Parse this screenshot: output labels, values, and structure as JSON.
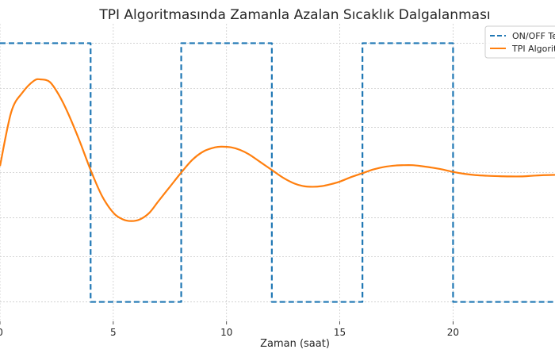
{
  "chart_data": {
    "type": "line",
    "title": "TPI Algoritmasında Zamanla Azalan Sıcaklık Dalgalanması",
    "xlabel": "Zaman (saat)",
    "ylabel": "",
    "xlim": [
      0,
      24.5
    ],
    "ylim": [
      -1.15,
      1.15
    ],
    "x_ticks": [
      0,
      5,
      10,
      15,
      20
    ],
    "x_tick_labels": [
      "0",
      "5",
      "10",
      "15",
      "20"
    ],
    "y_ticks": [
      -1.0,
      -0.65,
      -0.35,
      0.0,
      0.35,
      0.65,
      1.0
    ],
    "grid": true,
    "legend_position": "top-right",
    "legend_entries": [
      "ON/OFF Te",
      "TPI Algorit"
    ],
    "series": [
      {
        "name": "ON/OFF Te",
        "style": "dashed",
        "color": "#1f77b4",
        "x": [
          0,
          4,
          4,
          8,
          8,
          12,
          12,
          16,
          16,
          20,
          20,
          24.5
        ],
        "y": [
          1,
          1,
          -1,
          -1,
          1,
          1,
          -1,
          -1,
          1,
          1,
          -1,
          -1
        ]
      },
      {
        "name": "TPI Algorit",
        "style": "solid",
        "color": "#ff7f0e",
        "x": [
          0,
          0.5,
          1,
          1.5,
          1.8,
          2.2,
          2.6,
          3,
          3.5,
          4,
          4.5,
          5,
          5.4,
          5.8,
          6.2,
          6.6,
          7,
          7.5,
          8,
          8.5,
          9,
          9.5,
          9.8,
          10.2,
          10.6,
          11,
          11.5,
          12,
          12.5,
          13,
          13.4,
          13.8,
          14.2,
          14.6,
          15,
          15.5,
          16,
          16.5,
          17,
          17.5,
          17.8,
          18.2,
          18.6,
          19,
          19.5,
          20,
          20.5,
          21,
          21.5,
          22,
          22.5,
          23,
          23.5,
          24,
          24.5
        ],
        "y": [
          0.05,
          0.47,
          0.62,
          0.71,
          0.72,
          0.7,
          0.6,
          0.46,
          0.25,
          0.02,
          -0.18,
          -0.31,
          -0.36,
          -0.375,
          -0.36,
          -0.31,
          -0.22,
          -0.11,
          0.0,
          0.1,
          0.165,
          0.195,
          0.2,
          0.195,
          0.175,
          0.14,
          0.08,
          0.02,
          -0.04,
          -0.085,
          -0.105,
          -0.11,
          -0.105,
          -0.09,
          -0.07,
          -0.035,
          -0.005,
          0.025,
          0.045,
          0.055,
          0.057,
          0.057,
          0.05,
          0.04,
          0.025,
          0.005,
          -0.01,
          -0.02,
          -0.025,
          -0.028,
          -0.03,
          -0.03,
          -0.025,
          -0.02,
          -0.018
        ]
      }
    ]
  }
}
